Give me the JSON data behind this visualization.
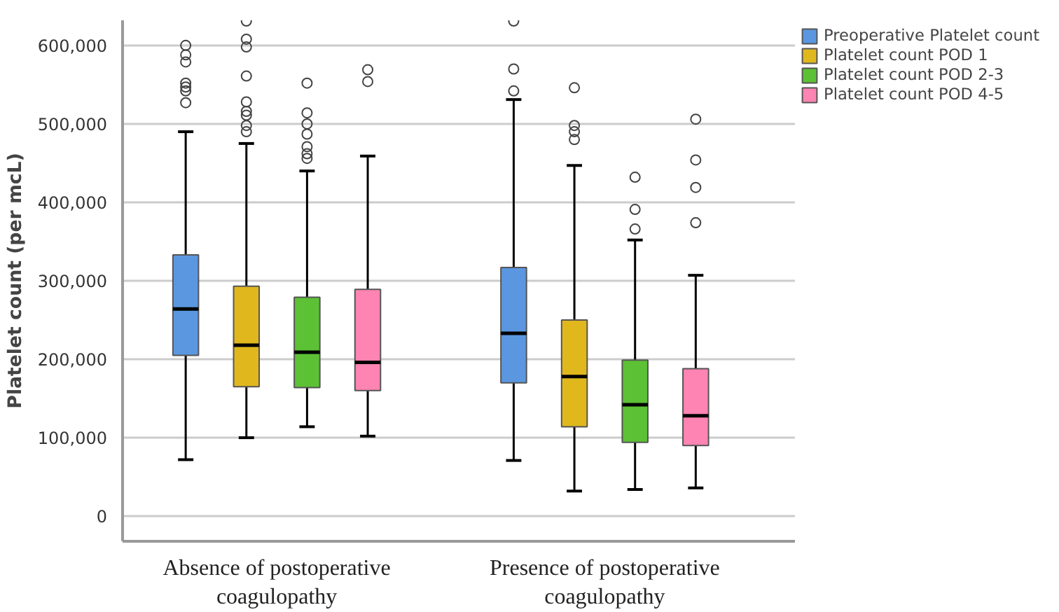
{
  "chart_data": {
    "type": "box",
    "ylabel": "Platelet count (per mcL)",
    "categories": [
      "Absence of postoperative coagulopathy",
      "Presence of postoperative coagulopathy"
    ],
    "ylim": [
      -32000,
      632000
    ],
    "yticks": [
      0,
      {
        "value": 100000,
        "label": "100,000"
      },
      {
        "value": 200000,
        "label": "200,000"
      },
      {
        "value": 300000,
        "label": "300,000"
      },
      {
        "value": 400000,
        "label": "400,000"
      },
      {
        "value": 500000,
        "label": "500,000"
      },
      {
        "value": 600000,
        "label": "600,000"
      }
    ],
    "grid": "y",
    "legend": "top right",
    "series": [
      {
        "name": "Preoperative Platelet count",
        "color": "#5a97e0",
        "boxes": [
          {
            "low": 72000,
            "q1": 205000,
            "median": 264000,
            "q3": 333000,
            "high": 490000,
            "outliers": [
              600000,
              588000,
              579000,
              552000,
              547000,
              542000,
              527000
            ]
          },
          {
            "low": 71000,
            "q1": 170000,
            "median": 233000,
            "q3": 317000,
            "high": 531000,
            "outliers": [
              631000,
              570000,
              542000
            ]
          }
        ]
      },
      {
        "name": "Platelet count POD 1",
        "color": "#e0b81d",
        "boxes": [
          {
            "low": 100000,
            "q1": 165000,
            "median": 218000,
            "q3": 293000,
            "high": 475000,
            "outliers": [
              631000,
              608000,
              598000,
              561000,
              528000,
              516000,
              511000,
              498000,
              490000
            ]
          },
          {
            "low": 32000,
            "q1": 114000,
            "median": 178000,
            "q3": 250000,
            "high": 447000,
            "outliers": [
              546000,
              498000,
              490000,
              480000
            ]
          }
        ]
      },
      {
        "name": "Platelet count POD 2-3",
        "color": "#5dc135",
        "boxes": [
          {
            "low": 114000,
            "q1": 164000,
            "median": 209000,
            "q3": 279000,
            "high": 440000,
            "outliers": [
              552000,
              514000,
              500000,
              487000,
              471000,
              462000,
              456000
            ]
          },
          {
            "low": 34000,
            "q1": 94000,
            "median": 142000,
            "q3": 199000,
            "high": 352000,
            "outliers": [
              432000,
              391000,
              366000
            ]
          }
        ]
      },
      {
        "name": "Platelet count POD 4-5",
        "color": "#fe84b3",
        "boxes": [
          {
            "low": 102000,
            "q1": 160000,
            "median": 196000,
            "q3": 289000,
            "high": 459000,
            "outliers": [
              569000,
              554000
            ]
          },
          {
            "low": 36000,
            "q1": 90000,
            "median": 128000,
            "q3": 188000,
            "high": 307000,
            "outliers": [
              506000,
              454000,
              419000,
              374000
            ]
          }
        ]
      }
    ]
  }
}
